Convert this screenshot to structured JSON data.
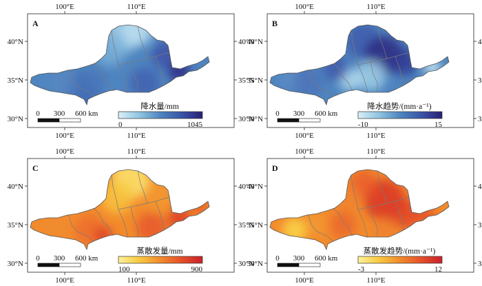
{
  "panels": [
    {
      "id": "A",
      "label": "A",
      "colorbar": {
        "title": "降水量/mm",
        "min": "0",
        "max": "1045",
        "colors": [
          "#d9eff7",
          "#8ec5df",
          "#4e85c0",
          "#3a55a8",
          "#2b1f74"
        ]
      },
      "scalebar": {
        "labels": [
          "0",
          "300",
          "600 km"
        ]
      }
    },
    {
      "id": "B",
      "label": "B",
      "colorbar": {
        "title": "降水趋势/(mm·a⁻¹)",
        "min": "-10",
        "max": "15",
        "colors": [
          "#d9eff7",
          "#8ec5df",
          "#4e85c0",
          "#3a55a8",
          "#2b1f74"
        ]
      },
      "scalebar": {
        "labels": [
          "0",
          "300",
          "600 km"
        ]
      }
    },
    {
      "id": "C",
      "label": "C",
      "colorbar": {
        "title": "蒸散发量/mm",
        "min": "100",
        "max": "900",
        "colors": [
          "#fef29a",
          "#f9c941",
          "#f28b2c",
          "#e5502a",
          "#c8202a"
        ]
      },
      "scalebar": {
        "labels": [
          "0",
          "300",
          "600 km"
        ]
      }
    },
    {
      "id": "D",
      "label": "D",
      "colorbar": {
        "title": "蒸散发趋势/(mm·a⁻¹)",
        "min": "-3",
        "max": "12",
        "colors": [
          "#fef29a",
          "#f9c941",
          "#f28b2c",
          "#e5502a",
          "#c8202a"
        ]
      },
      "scalebar": {
        "labels": [
          "0",
          "300",
          "600 km"
        ]
      }
    }
  ],
  "axes": {
    "lon_ticks": [
      "100°E",
      "110°E"
    ],
    "lat_ticks": [
      "40°N",
      "35°N",
      "30°N"
    ]
  }
}
